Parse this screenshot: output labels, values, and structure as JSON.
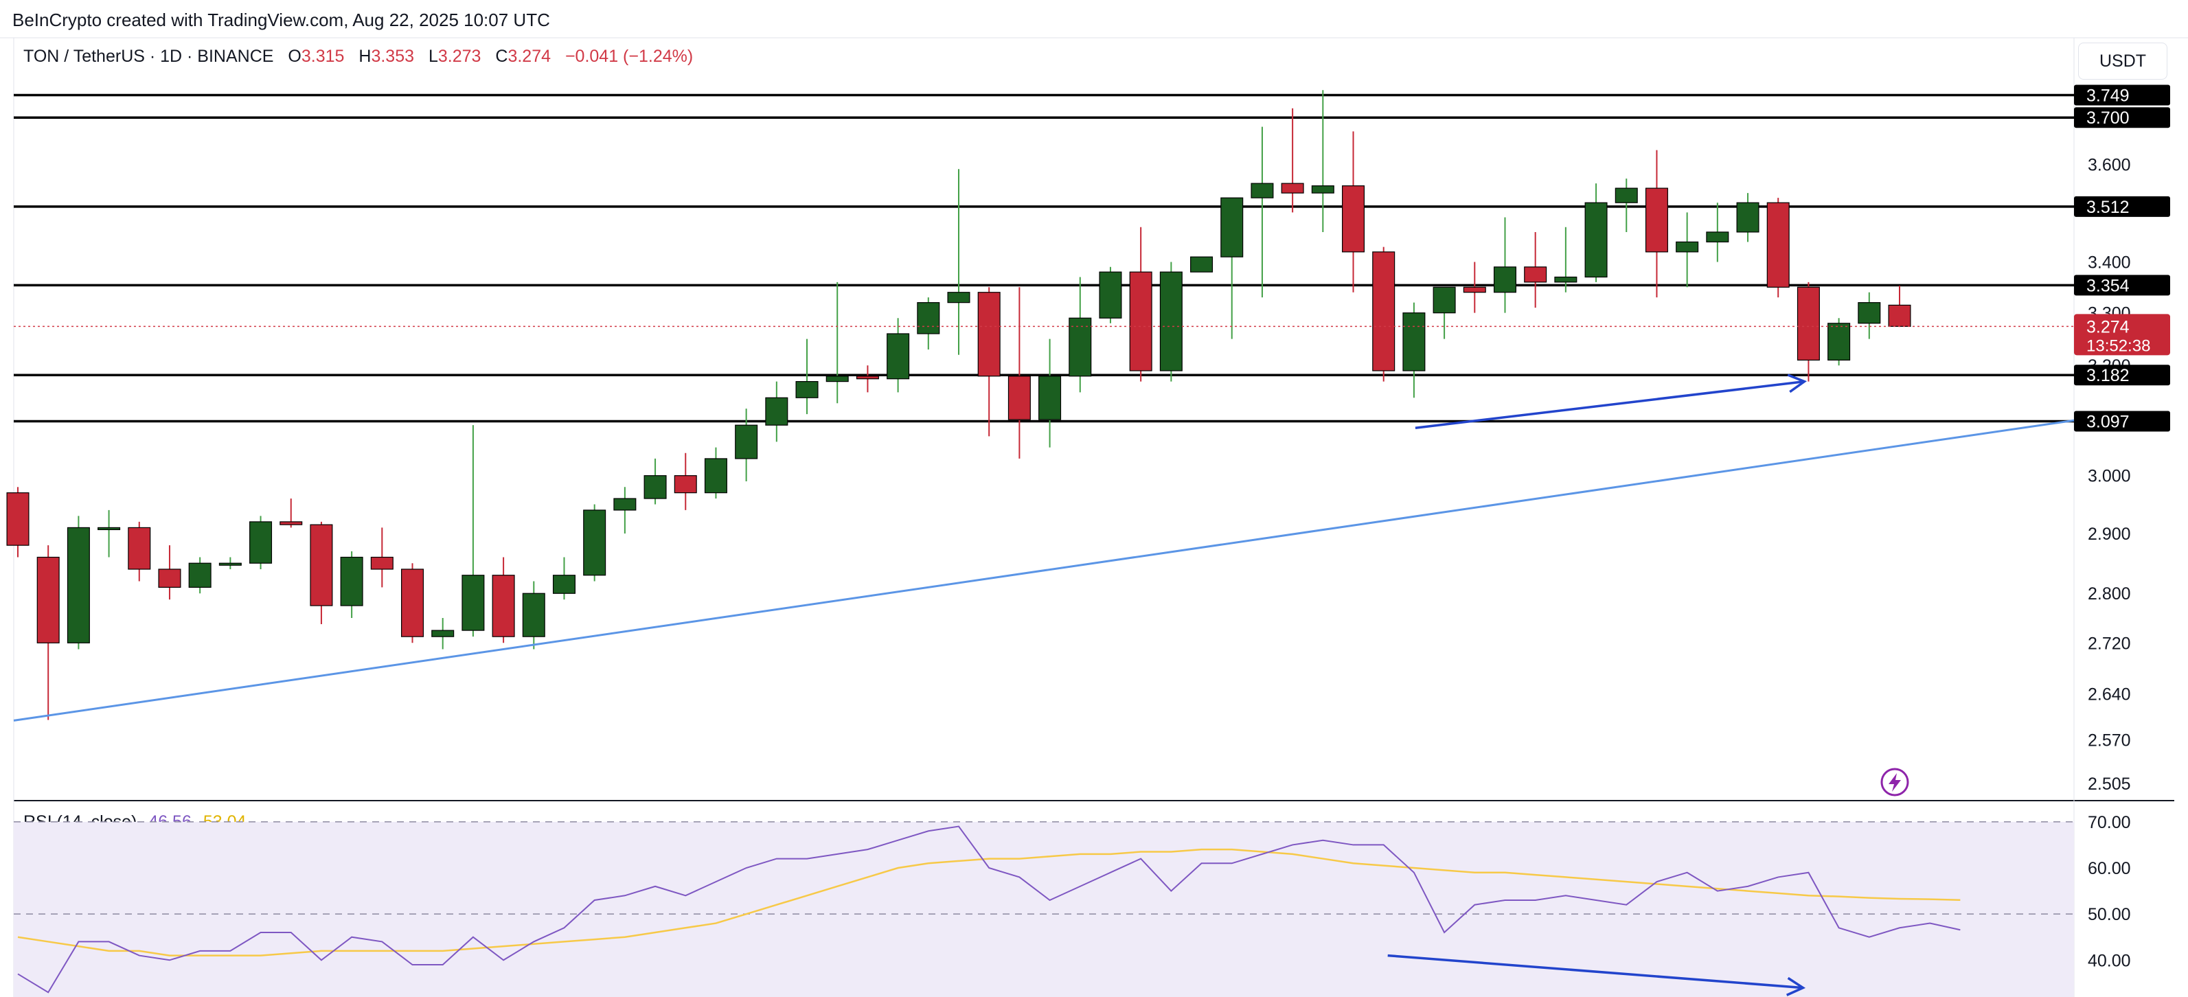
{
  "header": {
    "credit": "BeInCrypto created with TradingView.com, Aug 22, 2025 10:07 UTC",
    "symbol": "TON / TetherUS · 1D · BINANCE",
    "o_label": "O",
    "o": "3.315",
    "h_label": "H",
    "h": "3.353",
    "l_label": "L",
    "l": "3.273",
    "c_label": "C",
    "c": "3.274",
    "change": "−0.041 (−1.24%)",
    "currency": "USDT"
  },
  "rsi_legend": {
    "label": "RSI (14, close)",
    "rsi": "46.56",
    "ma": "53.04"
  },
  "colors": {
    "up": "#1b5e20",
    "down": "#c62836",
    "trendline": "#5b95e6",
    "arrow": "#2244cc",
    "rsi_line": "#7e57c2",
    "rsi_ma": "#f7c948",
    "rsi_band": "#efebf8"
  },
  "chart_data": [
    {
      "type": "candlestick",
      "y_axis_ticks": [
        2.505,
        2.57,
        2.64,
        2.72,
        2.8,
        2.9,
        3.0,
        3.1,
        3.2,
        3.3,
        3.4,
        3.6,
        3.7
      ],
      "y_axis_tick_labels": [
        "2.505",
        "2.570",
        "2.640",
        "2.720",
        "2.800",
        "2.900",
        "3.000",
        "3.200",
        "3.300",
        "3.400",
        "3.600"
      ],
      "ylim": [
        2.48,
        3.78
      ],
      "scale": "log",
      "horizontal_levels": [
        "3.749",
        "3.700",
        "3.512",
        "3.354",
        "3.182",
        "3.097"
      ],
      "last_price": {
        "value": "3.274",
        "countdown": "13:52:38"
      },
      "candles": [
        [
          2.97,
          2.98,
          2.86,
          2.88
        ],
        [
          2.86,
          2.88,
          2.6,
          2.72
        ],
        [
          2.72,
          2.93,
          2.71,
          2.91
        ],
        [
          2.91,
          2.94,
          2.86,
          2.91
        ],
        [
          2.91,
          2.92,
          2.82,
          2.84
        ],
        [
          2.84,
          2.88,
          2.79,
          2.81
        ],
        [
          2.81,
          2.86,
          2.8,
          2.85
        ],
        [
          2.85,
          2.86,
          2.84,
          2.85
        ],
        [
          2.85,
          2.93,
          2.84,
          2.92
        ],
        [
          2.92,
          2.96,
          2.91,
          2.915
        ],
        [
          2.915,
          2.92,
          2.75,
          2.78
        ],
        [
          2.78,
          2.87,
          2.76,
          2.86
        ],
        [
          2.86,
          2.91,
          2.81,
          2.84
        ],
        [
          2.84,
          2.85,
          2.72,
          2.73
        ],
        [
          2.73,
          2.76,
          2.71,
          2.74
        ],
        [
          2.74,
          3.09,
          2.73,
          2.83
        ],
        [
          2.83,
          2.86,
          2.72,
          2.73
        ],
        [
          2.73,
          2.82,
          2.71,
          2.8
        ],
        [
          2.8,
          2.86,
          2.79,
          2.83
        ],
        [
          2.83,
          2.95,
          2.82,
          2.94
        ],
        [
          2.94,
          2.98,
          2.9,
          2.96
        ],
        [
          2.96,
          3.03,
          2.95,
          3.0
        ],
        [
          3.0,
          3.04,
          2.94,
          2.97
        ],
        [
          2.97,
          3.05,
          2.96,
          3.03
        ],
        [
          3.03,
          3.12,
          2.99,
          3.09
        ],
        [
          3.09,
          3.17,
          3.06,
          3.14
        ],
        [
          3.14,
          3.25,
          3.11,
          3.17
        ],
        [
          3.17,
          3.36,
          3.13,
          3.18
        ],
        [
          3.18,
          3.2,
          3.15,
          3.175
        ],
        [
          3.175,
          3.29,
          3.15,
          3.26
        ],
        [
          3.26,
          3.33,
          3.23,
          3.32
        ],
        [
          3.32,
          3.59,
          3.22,
          3.34
        ],
        [
          3.34,
          3.35,
          3.07,
          3.18
        ],
        [
          3.18,
          3.35,
          3.03,
          3.1
        ],
        [
          3.1,
          3.25,
          3.05,
          3.18
        ],
        [
          3.18,
          3.37,
          3.15,
          3.29
        ],
        [
          3.29,
          3.39,
          3.28,
          3.38
        ],
        [
          3.38,
          3.47,
          3.17,
          3.19
        ],
        [
          3.19,
          3.4,
          3.17,
          3.38
        ],
        [
          3.38,
          3.41,
          3.38,
          3.41
        ],
        [
          3.41,
          3.52,
          3.25,
          3.53
        ],
        [
          3.53,
          3.68,
          3.33,
          3.56
        ],
        [
          3.56,
          3.72,
          3.5,
          3.54
        ],
        [
          3.54,
          3.76,
          3.46,
          3.555
        ],
        [
          3.555,
          3.67,
          3.34,
          3.42
        ],
        [
          3.42,
          3.43,
          3.17,
          3.19
        ],
        [
          3.19,
          3.32,
          3.14,
          3.3
        ],
        [
          3.3,
          3.34,
          3.25,
          3.35
        ],
        [
          3.35,
          3.4,
          3.3,
          3.34
        ],
        [
          3.34,
          3.49,
          3.3,
          3.39
        ],
        [
          3.39,
          3.46,
          3.31,
          3.36
        ],
        [
          3.36,
          3.47,
          3.34,
          3.37
        ],
        [
          3.37,
          3.56,
          3.36,
          3.52
        ],
        [
          3.52,
          3.57,
          3.46,
          3.55
        ],
        [
          3.55,
          3.63,
          3.33,
          3.42
        ],
        [
          3.42,
          3.5,
          3.35,
          3.44
        ],
        [
          3.44,
          3.52,
          3.4,
          3.46
        ],
        [
          3.46,
          3.54,
          3.44,
          3.52
        ],
        [
          3.52,
          3.53,
          3.33,
          3.35
        ],
        [
          3.35,
          3.36,
          3.17,
          3.21
        ],
        [
          3.21,
          3.29,
          3.2,
          3.28
        ],
        [
          3.28,
          3.34,
          3.25,
          3.32
        ],
        [
          3.315,
          3.353,
          3.273,
          3.274
        ]
      ],
      "candle_fields": [
        "open",
        "high",
        "low",
        "close"
      ]
    },
    {
      "type": "line",
      "name": "RSI (14, close)",
      "ylim": [
        32,
        74
      ],
      "y_axis_ticks": [
        40,
        50,
        60,
        70
      ],
      "y_axis_tick_labels": [
        "40.00",
        "50.00",
        "60.00",
        "70.00"
      ],
      "band": [
        30,
        70
      ],
      "midline": 50,
      "series": [
        {
          "name": "RSI",
          "values": [
            37,
            33,
            44,
            44,
            41,
            40,
            42,
            42,
            46,
            46,
            40,
            45,
            44,
            39,
            39,
            45,
            40,
            44,
            47,
            53,
            54,
            56,
            54,
            57,
            60,
            62,
            62,
            63,
            64,
            66,
            68,
            69,
            60,
            58,
            53,
            56,
            59,
            62,
            55,
            61,
            61,
            63,
            65,
            66,
            65,
            65,
            59,
            46,
            52,
            53,
            53,
            54,
            53,
            52,
            57,
            59,
            55,
            56,
            58,
            59,
            47,
            45,
            47,
            48,
            46.56
          ]
        },
        {
          "name": "RSI MA",
          "values": [
            45,
            44,
            43,
            42,
            42,
            41,
            41,
            41,
            41,
            41.5,
            42,
            42,
            42,
            42,
            42,
            42.5,
            43,
            43.5,
            44,
            44.5,
            45,
            46,
            47,
            48,
            50,
            52,
            54,
            56,
            58,
            60,
            61,
            61.5,
            62,
            62,
            62.5,
            63,
            63,
            63.5,
            63.5,
            64,
            64,
            63.5,
            63,
            62,
            61,
            60.5,
            60,
            59.5,
            59,
            59,
            58.5,
            58,
            57.5,
            57,
            56.5,
            56,
            55.5,
            55,
            54.5,
            54,
            53.8,
            53.5,
            53.3,
            53.2,
            53.04
          ]
        }
      ]
    }
  ]
}
